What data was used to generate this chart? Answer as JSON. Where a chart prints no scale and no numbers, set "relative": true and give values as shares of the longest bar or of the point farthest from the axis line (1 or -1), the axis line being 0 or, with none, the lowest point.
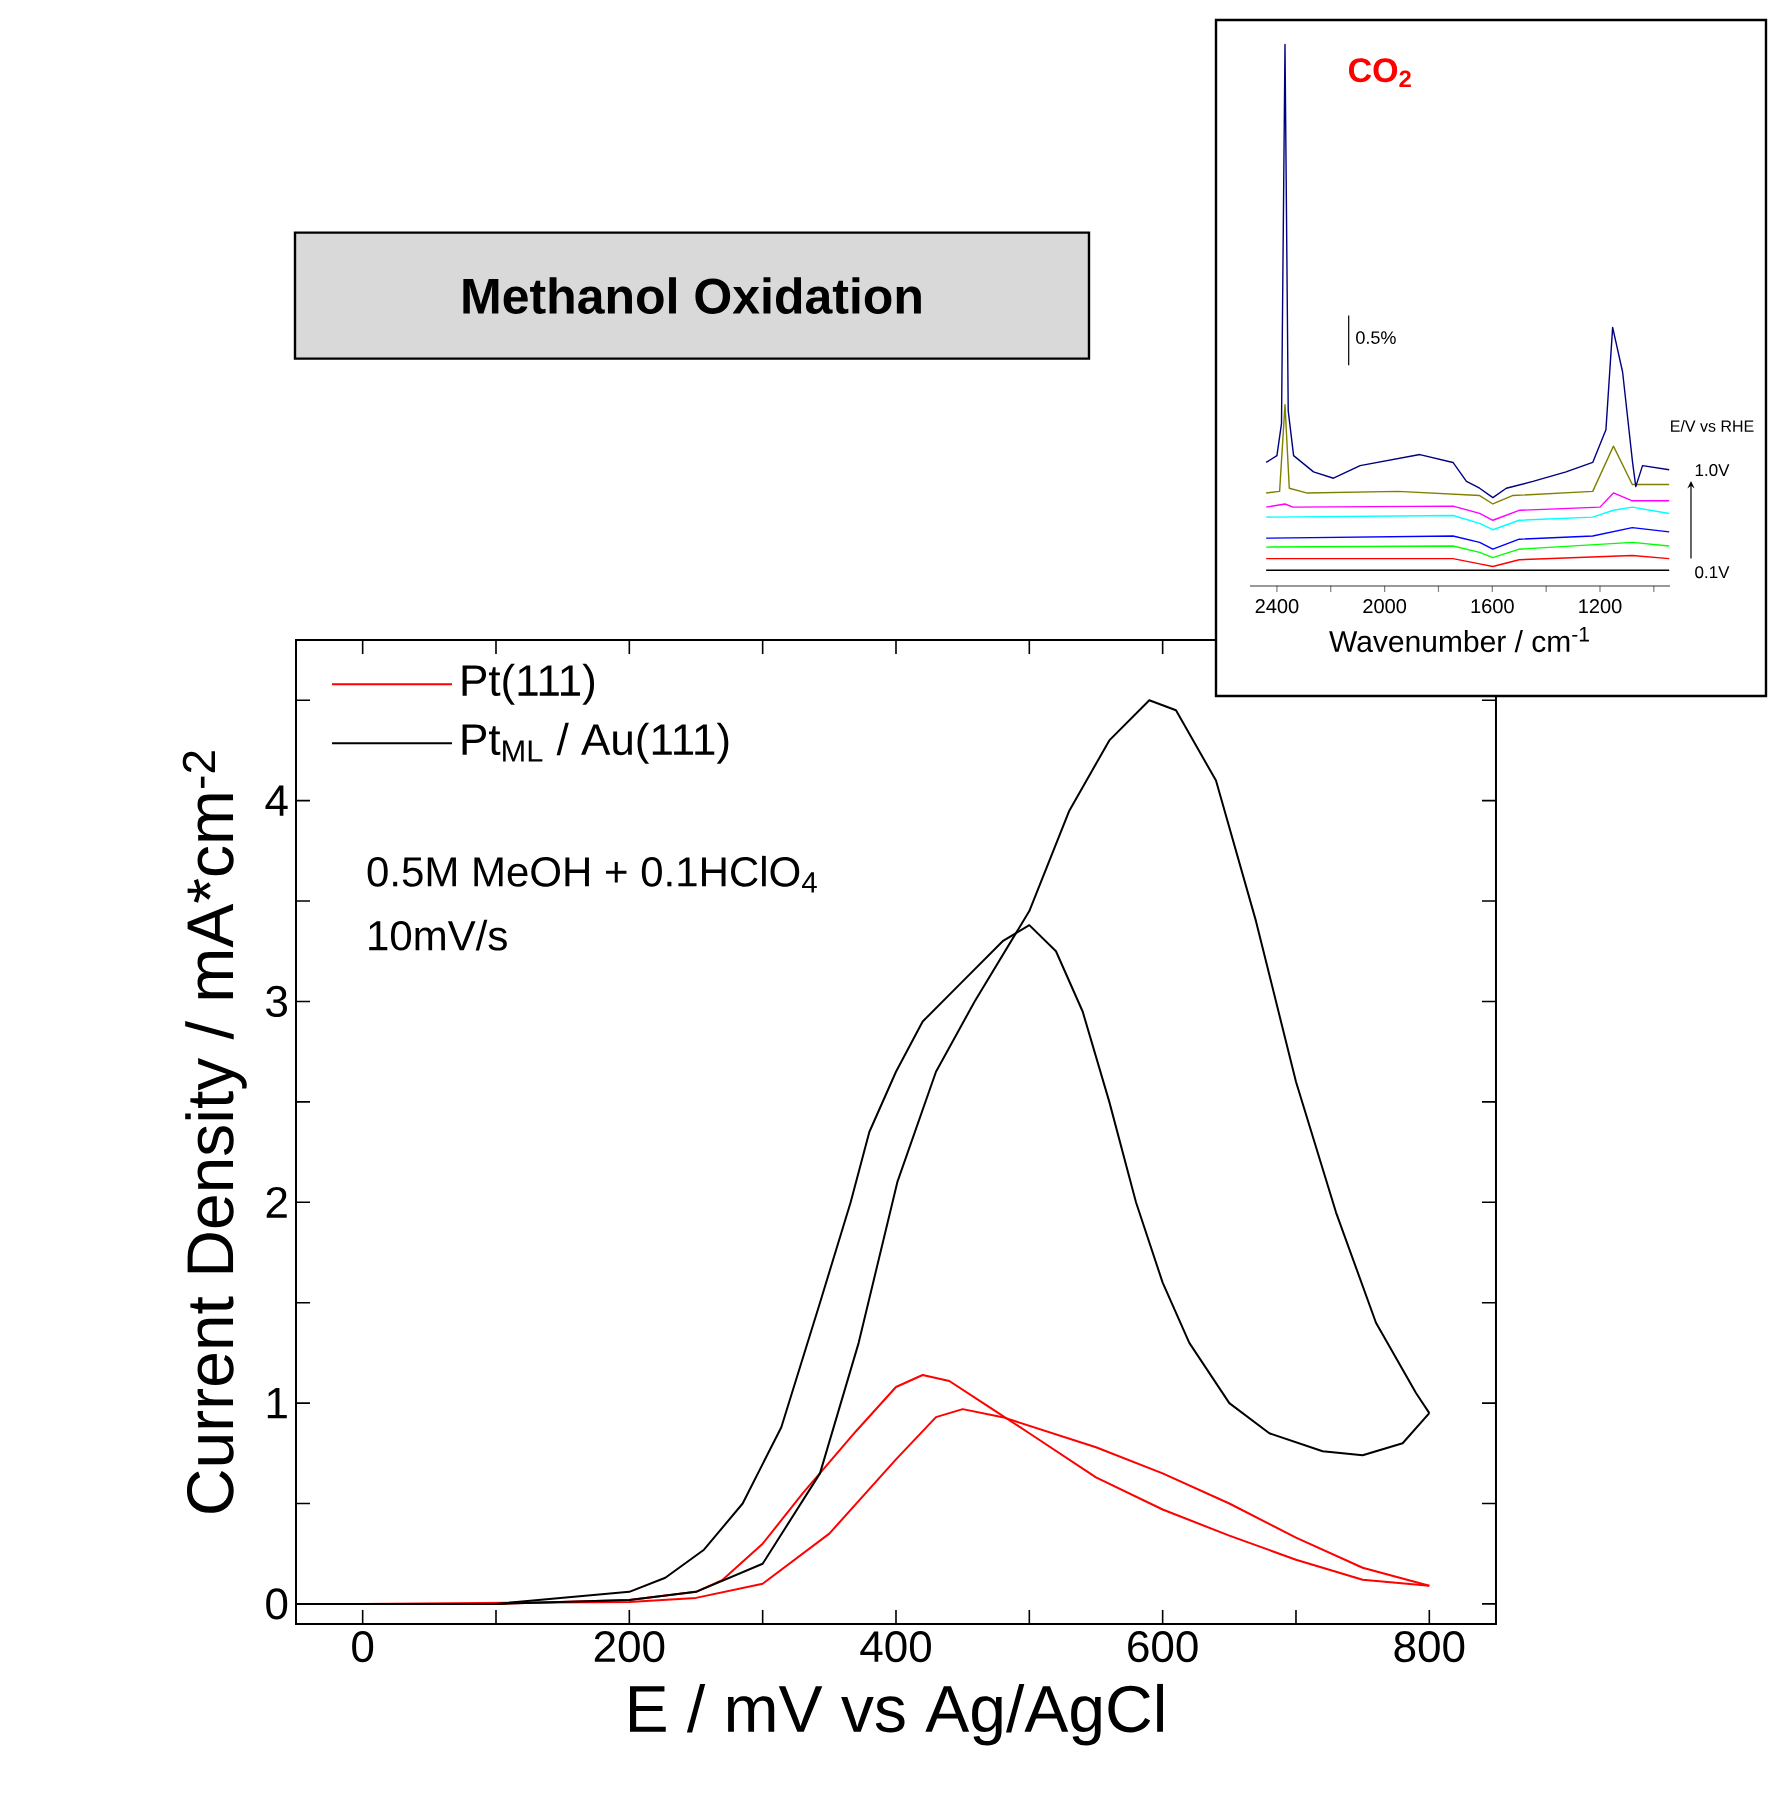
{
  "chart_data": [
    {
      "type": "line",
      "title": "Methanol Oxidation",
      "xlabel": "E / mV vs Ag/AgCl",
      "ylabel": "Current Density / mA*cm$^{-2}$",
      "annotations": [
        "0.5M MeOH + 0.1HClO$_{4}$",
        "10mV/s"
      ],
      "xlim": [
        -50,
        850
      ],
      "ylim": [
        -0.1,
        4.8
      ],
      "xticks": [
        0,
        {
          "value": 100,
          "label": null
        },
        200,
        {
          "value": 300,
          "label": null
        },
        400,
        {
          "value": 500,
          "label": null
        },
        600,
        {
          "value": 700,
          "label": null
        },
        800
      ],
      "yticks": [
        0,
        {
          "value": 0.5,
          "label": null
        },
        1,
        {
          "value": 1.5,
          "label": null
        },
        2,
        {
          "value": 2.5,
          "label": null
        },
        3,
        {
          "value": 3.5,
          "label": null
        },
        4,
        {
          "value": 4.5,
          "label": null
        }
      ],
      "legend": "top left",
      "series": [
        {
          "name": "Pt(111)",
          "color": "#ff0000",
          "x": [
            0,
            200,
            250,
            300,
            350,
            400,
            430,
            450,
            480,
            550,
            600,
            650,
            700,
            750,
            800
          ],
          "values": [
            0,
            0.01,
            0.03,
            0.1,
            0.35,
            0.72,
            0.93,
            0.97,
            0.93,
            0.78,
            0.65,
            0.5,
            0.33,
            0.18,
            0.09
          ]
        },
        {
          "color": "#ff0000",
          "x": [
            100,
            200,
            250,
            270,
            300,
            330,
            370,
            400,
            420,
            440,
            470,
            500,
            550,
            600,
            650,
            700,
            750,
            800
          ],
          "values": [
            0,
            0.02,
            0.06,
            0.12,
            0.3,
            0.55,
            0.86,
            1.08,
            1.14,
            1.11,
            0.98,
            0.85,
            0.63,
            0.47,
            0.34,
            0.22,
            0.12,
            0.09
          ]
        },
        {
          "name": "Pt$_{ML}$ / Au(111)",
          "color": "#000000",
          "x": [
            -50,
            100,
            200,
            250,
            300,
            343,
            372,
            401,
            430,
            459,
            500,
            530,
            560,
            590,
            610,
            640,
            670,
            700,
            730,
            760,
            790,
            800
          ],
          "values": [
            0,
            0,
            0.02,
            0.06,
            0.2,
            0.65,
            1.3,
            2.1,
            2.65,
            3.0,
            3.45,
            3.95,
            4.3,
            4.5,
            4.45,
            4.1,
            3.4,
            2.6,
            1.95,
            1.4,
            1.05,
            0.95
          ]
        },
        {
          "color": "#000000",
          "x": [
            -50,
            100,
            200,
            227,
            256,
            285,
            314,
            343,
            366,
            380,
            400,
            420,
            450,
            480,
            500,
            520,
            540,
            560,
            580,
            600,
            620,
            650,
            680,
            720,
            750,
            780,
            800
          ],
          "values": [
            0,
            0,
            0.06,
            0.13,
            0.27,
            0.5,
            0.88,
            1.5,
            2.0,
            2.35,
            2.65,
            2.9,
            3.1,
            3.3,
            3.38,
            3.25,
            2.95,
            2.5,
            2.0,
            1.6,
            1.3,
            1.0,
            0.85,
            0.76,
            0.74,
            0.8,
            0.95
          ]
        }
      ]
    },
    {
      "type": "line",
      "relative": true,
      "xlabel": "Wavenumber / cm$^{-1}$",
      "xlim": [
        2500,
        940
      ],
      "xticks": [
        2400,
        {
          "value": 2200,
          "label": null
        },
        2000,
        {
          "value": 1800,
          "label": null
        },
        1600,
        {
          "value": 1400,
          "label": null
        },
        1200,
        {
          "value": 1000,
          "label": null
        }
      ],
      "annotations": [
        "CO$_{2}$",
        "0.5%",
        "E/V vs RHE",
        "1.0V",
        "0.1V"
      ],
      "series": [
        {
          "color": "#000000",
          "x": [
            2440,
            1600,
            943
          ],
          "values": [
            0,
            0,
            0
          ]
        },
        {
          "color": "#ff0000",
          "x": [
            2440,
            1746,
            1647,
            1598,
            1500,
            1080,
            943
          ],
          "values": [
            0.022,
            0.022,
            0.012,
            0.007,
            0.02,
            0.028,
            0.022
          ]
        },
        {
          "color": "#00ff00",
          "x": [
            2440,
            1746,
            1647,
            1598,
            1500,
            1080,
            943
          ],
          "values": [
            0.044,
            0.046,
            0.034,
            0.024,
            0.04,
            0.053,
            0.046
          ]
        },
        {
          "color": "#0000ff",
          "x": [
            2440,
            1746,
            1647,
            1598,
            1500,
            1227,
            1080,
            943
          ],
          "values": [
            0.061,
            0.065,
            0.053,
            0.04,
            0.059,
            0.065,
            0.081,
            0.073
          ]
        },
        {
          "color": "#00ffff",
          "x": [
            2440,
            1746,
            1647,
            1598,
            1500,
            1227,
            1150,
            1080,
            943
          ],
          "values": [
            0.101,
            0.104,
            0.089,
            0.077,
            0.095,
            0.101,
            0.114,
            0.12,
            0.108
          ]
        },
        {
          "color": "#ff00ff",
          "x": [
            2440,
            2370,
            2340,
            1746,
            1647,
            1598,
            1500,
            1200,
            1150,
            1080,
            943
          ],
          "values": [
            0.12,
            0.126,
            0.12,
            0.122,
            0.108,
            0.095,
            0.114,
            0.12,
            0.147,
            0.132,
            0.132
          ]
        },
        {
          "color": "#808000",
          "x": [
            2440,
            2390,
            2370,
            2354,
            2290,
            1950,
            1647,
            1598,
            1525,
            1227,
            1150,
            1080,
            943
          ],
          "values": [
            0.147,
            0.15,
            0.315,
            0.156,
            0.147,
            0.15,
            0.142,
            0.126,
            0.142,
            0.15,
            0.236,
            0.163,
            0.163
          ]
        },
        {
          "color": "#000080",
          "x": [
            2440,
            2400,
            2383,
            2370,
            2358,
            2338,
            2264,
            2190,
            2091,
            1869,
            1746,
            1696,
            1647,
            1598,
            1548,
            1449,
            1326,
            1227,
            1178,
            1153,
            1116,
            1079,
            1067,
            1042,
            943
          ],
          "values": [
            0.205,
            0.218,
            0.279,
            1.0,
            0.303,
            0.218,
            0.187,
            0.175,
            0.199,
            0.22,
            0.205,
            0.169,
            0.156,
            0.138,
            0.156,
            0.169,
            0.187,
            0.205,
            0.267,
            0.462,
            0.377,
            0.205,
            0.159,
            0.199,
            0.191
          ]
        }
      ]
    }
  ]
}
